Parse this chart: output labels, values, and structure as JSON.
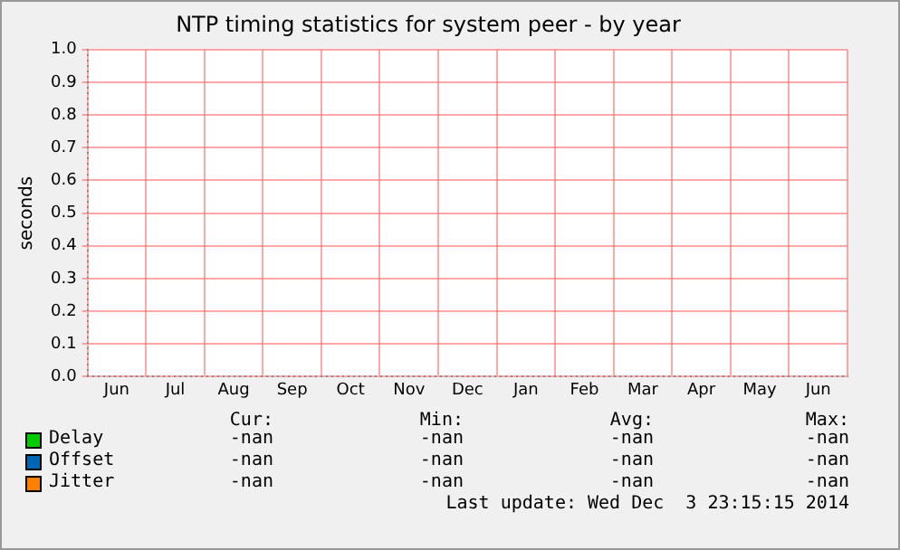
{
  "chart_data": {
    "type": "line",
    "title": "NTP timing statistics for system peer - by year",
    "ylabel": "seconds",
    "categories": [
      "Jun",
      "Jul",
      "Aug",
      "Sep",
      "Oct",
      "Nov",
      "Dec",
      "Jan",
      "Feb",
      "Mar",
      "Apr",
      "May",
      "Jun"
    ],
    "ylim": [
      0,
      1
    ],
    "yticks": [
      {
        "value": 0,
        "label": "0.0"
      },
      {
        "value": 0.1,
        "label": "0.1"
      },
      {
        "value": 0.2,
        "label": "0.2"
      },
      {
        "value": 0.3,
        "label": "0.3"
      },
      {
        "value": 0.4,
        "label": "0.4"
      },
      {
        "value": 0.5,
        "label": "0.5"
      },
      {
        "value": 0.6,
        "label": "0.6"
      },
      {
        "value": 0.7,
        "label": "0.7"
      },
      {
        "value": 0.8,
        "label": "0.8"
      },
      {
        "value": 0.9,
        "label": "0.9"
      },
      {
        "value": 1,
        "label": "1.0"
      }
    ],
    "grid": true,
    "legend": "bottom",
    "series": [
      {
        "name": "Delay",
        "color": "#00cc00",
        "values": [
          null,
          null,
          null,
          null,
          null,
          null,
          null,
          null,
          null,
          null,
          null,
          null,
          null
        ]
      },
      {
        "name": "Offset",
        "color": "#0066b3",
        "values": [
          null,
          null,
          null,
          null,
          null,
          null,
          null,
          null,
          null,
          null,
          null,
          null,
          null
        ]
      },
      {
        "name": "Jitter",
        "color": "#ff8000",
        "values": [
          null,
          null,
          null,
          null,
          null,
          null,
          null,
          null,
          null,
          null,
          null,
          null,
          null
        ]
      }
    ],
    "annotations": [
      "Cur:",
      "Min:",
      "Avg:",
      "Max:",
      "-nan",
      "-nan",
      "-nan",
      "-nan",
      "-nan",
      "-nan",
      "-nan",
      "-nan",
      "-nan",
      "-nan",
      "-nan",
      "-nan",
      "Last update: Wed Dec  3 23:15:15 2014"
    ]
  }
}
